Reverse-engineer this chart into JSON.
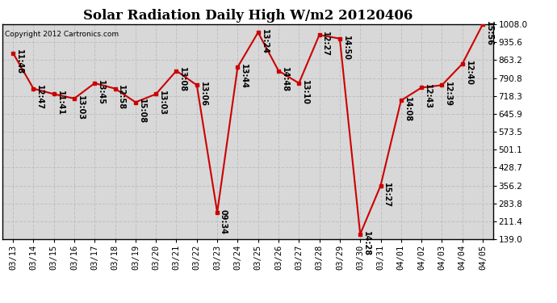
{
  "title": "Solar Radiation Daily High W/m2 20120406",
  "copyright": "Copyright 2012 Cartronics.com",
  "dates": [
    "03/13",
    "03/14",
    "03/15",
    "03/16",
    "03/17",
    "03/18",
    "03/19",
    "03/20",
    "03/21",
    "03/22",
    "03/23",
    "03/24",
    "03/25",
    "03/26",
    "03/27",
    "03/28",
    "03/29",
    "03/30",
    "03/31",
    "04/01",
    "04/02",
    "04/03",
    "04/04",
    "04/05"
  ],
  "values": [
    892,
    748,
    726,
    708,
    770,
    748,
    693,
    726,
    820,
    762,
    248,
    835,
    975,
    820,
    770,
    965,
    950,
    160,
    356,
    700,
    752,
    762,
    848,
    1008
  ],
  "time_labels": [
    "11:48",
    "12:47",
    "11:41",
    "13:03",
    "13:45",
    "12:58",
    "15:08",
    "13:03",
    "13:08",
    "13:06",
    "09:34",
    "13:44",
    "13:24",
    "14:48",
    "13:10",
    "12:27",
    "14:50",
    "14:28",
    "15:27",
    "14:08",
    "12:43",
    "12:39",
    "12:40",
    "15:56"
  ],
  "line_color": "#cc0000",
  "marker_color": "#cc0000",
  "grid_color": "#c0c0c0",
  "bg_color": "#ffffff",
  "plot_bg_color": "#d8d8d8",
  "title_fontsize": 12,
  "label_fontsize": 7,
  "tick_fontsize": 7.5,
  "copyright_fontsize": 6.5,
  "ylim_min": 139.0,
  "ylim_max": 1008.0,
  "yticks": [
    139.0,
    211.4,
    283.8,
    356.2,
    428.7,
    501.1,
    573.5,
    645.9,
    718.3,
    790.8,
    863.2,
    935.6,
    1008.0
  ]
}
